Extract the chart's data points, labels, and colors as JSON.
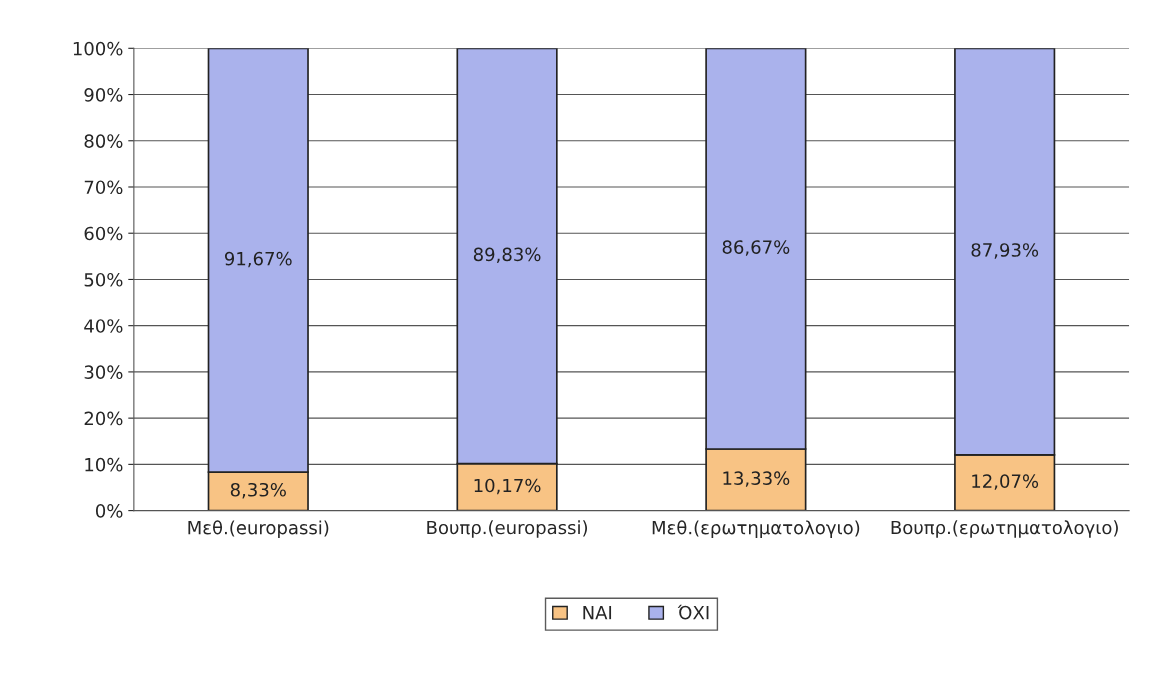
{
  "chart_data": {
    "type": "bar",
    "stacked": true,
    "categories": [
      "Μεθ.(europassi)",
      "Βουπρ.(europassi)",
      "Μεθ.(ερωτηματολογιο)",
      "Βουπρ.(ερωτηματολογιο)"
    ],
    "series": [
      {
        "name": "ΝΑΙ",
        "color": "#f8c384",
        "values": [
          8.33,
          10.17,
          13.33,
          12.07
        ],
        "value_labels": [
          "8,33%",
          "10,17%",
          "13,33%",
          "12,07%"
        ]
      },
      {
        "name": "ΌΧΙ",
        "color": "#aab2ec",
        "values": [
          91.67,
          89.83,
          86.67,
          87.93
        ],
        "value_labels": [
          "91,67%",
          "89,83%",
          "86,67%",
          "87,93%"
        ]
      }
    ],
    "ylim": [
      0,
      100
    ],
    "yticks": [
      {
        "value": 0,
        "label": "0%"
      },
      {
        "value": 10,
        "label": "10%"
      },
      {
        "value": 20,
        "label": "20%"
      },
      {
        "value": 30,
        "label": "30%"
      },
      {
        "value": 40,
        "label": "40%"
      },
      {
        "value": 50,
        "label": "50%"
      },
      {
        "value": 60,
        "label": "60%"
      },
      {
        "value": 70,
        "label": "70%"
      },
      {
        "value": 80,
        "label": "80%"
      },
      {
        "value": 90,
        "label": "90%"
      },
      {
        "value": 100,
        "label": "100%"
      }
    ],
    "grid": "y",
    "legend": "bottom"
  }
}
